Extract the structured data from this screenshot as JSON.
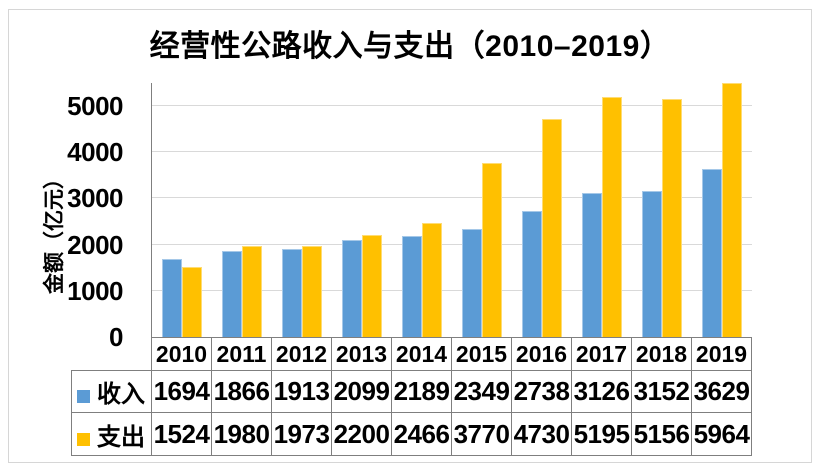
{
  "title": "经营性公路收入与支出（2010–2019）",
  "colors": {
    "income": "#5B9BD5",
    "expense": "#FFC000",
    "gridline": "#D9D9D9",
    "axis": "#7F7F7F",
    "table_border": "#7F7F7F",
    "frame_border": "#D6D6D6",
    "text": "#000000"
  },
  "chart_data": {
    "type": "bar",
    "title": "经营性公路收入与支出（2010–2019）",
    "xlabel": "",
    "ylabel": "金额（亿元）",
    "categories": [
      "2010",
      "2011",
      "2012",
      "2013",
      "2014",
      "2015",
      "2016",
      "2017",
      "2018",
      "2019"
    ],
    "series": [
      {
        "name": "收入",
        "color": "#5B9BD5",
        "values": [
          1694,
          1866,
          1913,
          2099,
          2189,
          2349,
          2738,
          3126,
          3152,
          3629
        ]
      },
      {
        "name": "支出",
        "color": "#FFC000",
        "values": [
          1524,
          1980,
          1973,
          2200,
          2466,
          3770,
          4730,
          5195,
          5156,
          5964
        ]
      }
    ],
    "ylim": [
      0,
      5500
    ],
    "yticks": [
      0,
      1000,
      2000,
      3000,
      4000,
      5000
    ],
    "grid": true,
    "legend_position": "table-left",
    "table_legend": true
  }
}
